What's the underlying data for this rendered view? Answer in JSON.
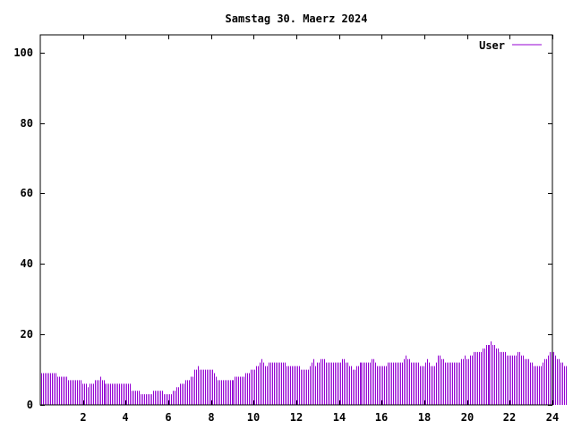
{
  "chart_data": {
    "type": "bar",
    "title": "Samstag 30. Maerz 2024",
    "xlabel": "",
    "ylabel": "",
    "xlim": [
      0,
      24
    ],
    "ylim": [
      0,
      105
    ],
    "x_ticks": [
      2,
      4,
      6,
      8,
      10,
      12,
      14,
      16,
      18,
      20,
      22,
      24
    ],
    "y_ticks": [
      0,
      20,
      40,
      60,
      80,
      100
    ],
    "grid": false,
    "legend_position": "top-right",
    "colors": {
      "series": "#9400d3",
      "axis": "#000000",
      "background": "#ffffff"
    },
    "series": [
      {
        "name": "User",
        "interval_minutes": 5,
        "values": [
          9,
          9,
          9,
          9,
          9,
          9,
          9,
          9,
          9,
          8,
          8,
          8,
          8,
          8,
          8,
          7,
          7,
          7,
          7,
          7,
          7,
          7,
          7,
          6,
          6,
          6,
          5,
          6,
          6,
          6,
          7,
          7,
          7,
          8,
          7,
          7,
          6,
          6,
          6,
          6,
          6,
          6,
          6,
          6,
          6,
          6,
          6,
          6,
          6,
          6,
          6,
          4,
          4,
          4,
          4,
          4,
          3,
          3,
          3,
          3,
          3,
          3,
          3,
          4,
          4,
          4,
          4,
          4,
          4,
          3,
          3,
          3,
          3,
          3,
          4,
          4,
          5,
          5,
          6,
          6,
          6,
          7,
          7,
          7,
          8,
          8,
          10,
          10,
          11,
          10,
          10,
          10,
          10,
          10,
          10,
          10,
          10,
          9,
          8,
          7,
          7,
          7,
          7,
          7,
          7,
          7,
          7,
          7,
          7,
          8,
          8,
          8,
          8,
          8,
          8,
          9,
          9,
          9,
          10,
          10,
          10,
          11,
          11,
          12,
          13,
          12,
          11,
          11,
          12,
          12,
          12,
          12,
          12,
          12,
          12,
          12,
          12,
          12,
          11,
          11,
          11,
          11,
          11,
          11,
          11,
          11,
          10,
          10,
          10,
          10,
          10,
          11,
          12,
          13,
          11,
          12,
          12,
          13,
          13,
          13,
          12,
          12,
          12,
          12,
          12,
          12,
          12,
          12,
          12,
          13,
          13,
          12,
          12,
          11,
          11,
          10,
          10,
          11,
          11,
          12,
          12,
          12,
          12,
          12,
          12,
          12,
          13,
          13,
          12,
          11,
          11,
          11,
          11,
          11,
          11,
          12,
          12,
          12,
          12,
          12,
          12,
          12,
          12,
          12,
          13,
          14,
          13,
          13,
          12,
          12,
          12,
          12,
          12,
          11,
          11,
          11,
          12,
          13,
          12,
          11,
          11,
          11,
          12,
          14,
          14,
          13,
          13,
          12,
          12,
          12,
          12,
          12,
          12,
          12,
          12,
          12,
          13,
          13,
          14,
          13,
          13,
          14,
          14,
          15,
          15,
          15,
          15,
          15,
          16,
          16,
          17,
          17,
          17,
          18,
          17,
          17,
          16,
          16,
          15,
          15,
          15,
          15,
          14,
          14,
          14,
          14,
          14,
          14,
          15,
          15,
          14,
          14,
          13,
          13,
          13,
          12,
          12,
          11,
          11,
          11,
          11,
          11,
          12,
          13,
          13,
          14,
          15,
          15,
          15,
          14,
          13,
          13,
          12,
          12,
          11,
          11
        ]
      }
    ]
  }
}
